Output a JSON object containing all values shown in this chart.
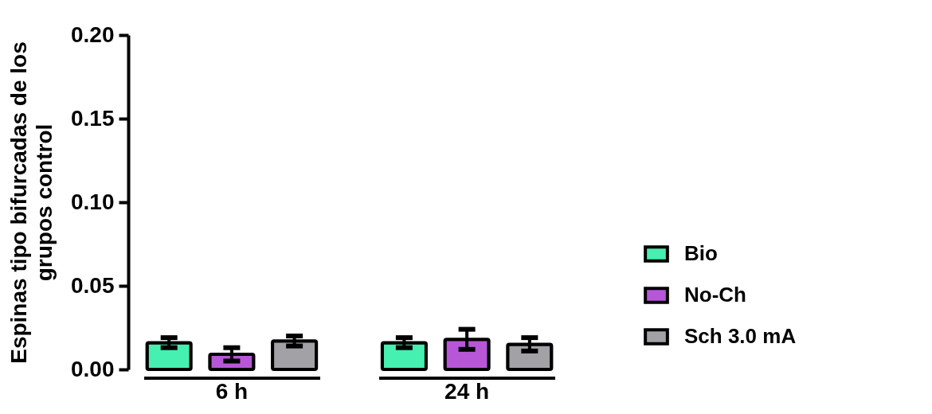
{
  "chart_data": {
    "type": "bar",
    "ylabel": "Espinas tipo bifurcadas de los\ngrupos control",
    "categories": [
      "6 h",
      "24 h"
    ],
    "series": [
      {
        "name": "Bio",
        "color": "#45f0b0",
        "values": [
          0.016,
          0.016
        ],
        "errors": [
          0.003,
          0.003
        ]
      },
      {
        "name": "No-Ch",
        "color": "#b757d8",
        "values": [
          0.009,
          0.018
        ],
        "errors": [
          0.004,
          0.006
        ]
      },
      {
        "name": "Sch 3.0 mA",
        "color": "#a2a1a6",
        "values": [
          0.017,
          0.015
        ],
        "errors": [
          0.003,
          0.004
        ]
      }
    ],
    "ylim": [
      0,
      0.2
    ],
    "yticks": [
      {
        "value": 0,
        "label": "0.00"
      },
      {
        "value": 0.05,
        "label": "0.05"
      },
      {
        "value": 0.1,
        "label": "0.10"
      },
      {
        "value": 0.15,
        "label": "0.15"
      },
      {
        "value": 0.2,
        "label": "0.20"
      }
    ],
    "legend": "right",
    "grid": false
  }
}
